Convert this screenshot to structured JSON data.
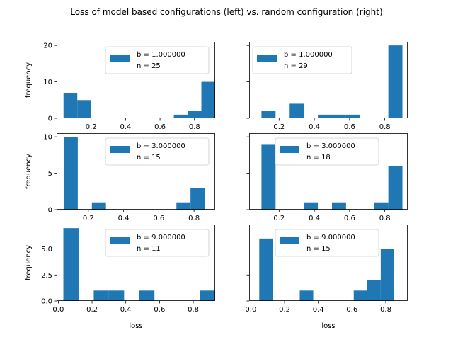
{
  "chart_data": {
    "title": "Loss of model based configurations (left) vs. random configuration (right)",
    "bar_color": "#1f77b4",
    "panels": [
      {
        "type": "bar",
        "row": 0,
        "col": 0,
        "xlim": [
          0.0,
          0.92
        ],
        "ylim": [
          0,
          21
        ],
        "yticks": [
          0,
          10,
          20
        ],
        "ytick_labels": [
          "0",
          "10",
          "20"
        ],
        "xticks": [
          0.2,
          0.4,
          0.6,
          0.8
        ],
        "xtick_labels": [
          "0.2",
          "0.4",
          "0.6",
          "0.8"
        ],
        "bins": [
          [
            0.04,
            0.12,
            7
          ],
          [
            0.12,
            0.2,
            5
          ],
          [
            0.2,
            0.28,
            0
          ],
          [
            0.28,
            0.36,
            0
          ],
          [
            0.36,
            0.44,
            0
          ],
          [
            0.44,
            0.52,
            0
          ],
          [
            0.52,
            0.6,
            0
          ],
          [
            0.6,
            0.68,
            0
          ],
          [
            0.68,
            0.76,
            1
          ],
          [
            0.76,
            0.84,
            2
          ],
          [
            0.84,
            0.92,
            10
          ]
        ],
        "legend_b": "b = 1.000000",
        "legend_n": " n = 25",
        "ylabel": "frequency",
        "xlabel": ""
      },
      {
        "type": "bar",
        "row": 0,
        "col": 1,
        "xlim": [
          0.03,
          0.93
        ],
        "ylim": [
          0,
          21
        ],
        "yticks": [
          0,
          10,
          20
        ],
        "ytick_labels": [
          "",
          "",
          ""
        ],
        "xticks": [
          0.2,
          0.4,
          0.6,
          0.8
        ],
        "xtick_labels": [
          "0.2",
          "0.4",
          "0.6",
          "0.8"
        ],
        "bins": [
          [
            0.1,
            0.18,
            2
          ],
          [
            0.18,
            0.26,
            0
          ],
          [
            0.26,
            0.34,
            4
          ],
          [
            0.34,
            0.42,
            0
          ],
          [
            0.42,
            0.5,
            1
          ],
          [
            0.5,
            0.58,
            1
          ],
          [
            0.58,
            0.66,
            1
          ],
          [
            0.66,
            0.74,
            0
          ],
          [
            0.74,
            0.82,
            0
          ],
          [
            0.82,
            0.9,
            20
          ]
        ],
        "legend_b": "b = 1.000000",
        "legend_n": " n = 29",
        "ylabel": "",
        "xlabel": ""
      },
      {
        "type": "bar",
        "row": 1,
        "col": 0,
        "xlim": [
          0.02,
          0.92
        ],
        "ylim": [
          0,
          10.5
        ],
        "yticks": [
          0,
          5,
          10
        ],
        "ytick_labels": [
          "0",
          "5",
          "10"
        ],
        "xticks": [
          0.2,
          0.4,
          0.6,
          0.8
        ],
        "xtick_labels": [
          "0.2",
          "0.4",
          "0.6",
          "0.8"
        ],
        "bins": [
          [
            0.06,
            0.14,
            10
          ],
          [
            0.14,
            0.22,
            0
          ],
          [
            0.22,
            0.3,
            1
          ],
          [
            0.3,
            0.38,
            0
          ],
          [
            0.38,
            0.46,
            0
          ],
          [
            0.46,
            0.54,
            0
          ],
          [
            0.54,
            0.62,
            0
          ],
          [
            0.62,
            0.7,
            0
          ],
          [
            0.7,
            0.78,
            1
          ],
          [
            0.78,
            0.86,
            3
          ]
        ],
        "legend_b": "b = 3.000000",
        "legend_n": " n = 15",
        "ylabel": "frequency",
        "xlabel": ""
      },
      {
        "type": "bar",
        "row": 1,
        "col": 1,
        "xlim": [
          0.03,
          0.93
        ],
        "ylim": [
          0,
          10.5
        ],
        "yticks": [
          0,
          5,
          10
        ],
        "ytick_labels": [
          "",
          "",
          ""
        ],
        "xticks": [
          0.2,
          0.4,
          0.6,
          0.8
        ],
        "xtick_labels": [
          "0.2",
          "0.4",
          "0.6",
          "0.8"
        ],
        "bins": [
          [
            0.1,
            0.18,
            9
          ],
          [
            0.18,
            0.26,
            0
          ],
          [
            0.26,
            0.34,
            0
          ],
          [
            0.34,
            0.42,
            1
          ],
          [
            0.42,
            0.5,
            0
          ],
          [
            0.5,
            0.58,
            1
          ],
          [
            0.58,
            0.66,
            0
          ],
          [
            0.66,
            0.74,
            0
          ],
          [
            0.74,
            0.82,
            1
          ],
          [
            0.82,
            0.9,
            6
          ]
        ],
        "legend_b": "b = 3.000000",
        "legend_n": " n = 18",
        "ylabel": "",
        "xlabel": ""
      },
      {
        "type": "bar",
        "row": 2,
        "col": 0,
        "xlim": [
          -0.01,
          0.93
        ],
        "ylim": [
          0,
          7.35
        ],
        "yticks": [
          0,
          2.5,
          5
        ],
        "ytick_labels": [
          "0.0",
          "2.5",
          "5.0"
        ],
        "xticks": [
          0,
          0.2,
          0.4,
          0.6,
          0.8
        ],
        "xtick_labels": [
          "0.0",
          "0.2",
          "0.4",
          "0.6",
          "0.8"
        ],
        "bins": [
          [
            0.03,
            0.12,
            7
          ],
          [
            0.12,
            0.21,
            0
          ],
          [
            0.21,
            0.3,
            1
          ],
          [
            0.3,
            0.39,
            1
          ],
          [
            0.39,
            0.48,
            0
          ],
          [
            0.48,
            0.57,
            1
          ],
          [
            0.57,
            0.66,
            0
          ],
          [
            0.66,
            0.75,
            0
          ],
          [
            0.75,
            0.84,
            0
          ],
          [
            0.84,
            0.93,
            1
          ]
        ],
        "legend_b": "b = 9.000000",
        "legend_n": " n = 11",
        "ylabel": "frequency",
        "xlabel": "loss"
      },
      {
        "type": "bar",
        "row": 2,
        "col": 1,
        "xlim": [
          -0.01,
          0.93
        ],
        "ylim": [
          0,
          7.35
        ],
        "yticks": [
          0,
          2.5,
          5
        ],
        "ytick_labels": [
          "",
          "",
          ""
        ],
        "xticks": [
          0,
          0.2,
          0.4,
          0.6,
          0.8
        ],
        "xtick_labels": [
          "0.0",
          "0.2",
          "0.4",
          "0.6",
          "0.8"
        ],
        "bins": [
          [
            0.05,
            0.13,
            6
          ],
          [
            0.13,
            0.21,
            0
          ],
          [
            0.21,
            0.29,
            0
          ],
          [
            0.29,
            0.37,
            1
          ],
          [
            0.37,
            0.45,
            0
          ],
          [
            0.45,
            0.53,
            0
          ],
          [
            0.53,
            0.61,
            0
          ],
          [
            0.61,
            0.69,
            1
          ],
          [
            0.69,
            0.77,
            2
          ],
          [
            0.77,
            0.85,
            5
          ]
        ],
        "legend_b": "b = 9.000000",
        "legend_n": " n = 15",
        "ylabel": "",
        "xlabel": "loss"
      }
    ]
  }
}
